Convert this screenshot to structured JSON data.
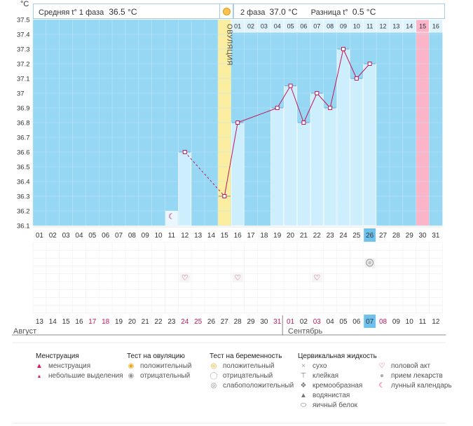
{
  "header": {
    "unit": "°C",
    "phase1_label": "Средняя t° 1 фаза",
    "phase1_value": "36.5 °C",
    "phase2_label": "2 фаза",
    "phase2_value": "37.0 °C",
    "diff_label": "Разница t°",
    "diff_value": "0.5 °C"
  },
  "chart_data": {
    "type": "line",
    "ylim": [
      36.1,
      37.5
    ],
    "yticks": [
      "37.5",
      "37.4",
      "37.3",
      "37.2",
      "37.1",
      "37",
      "36.9",
      "36.8",
      "36.7",
      "36.6",
      "36.5",
      "36.4",
      "36.3",
      "36.2",
      "36.1"
    ],
    "cycle_days": [
      "01",
      "02",
      "03",
      "04",
      "05",
      "06",
      "07",
      "08",
      "09",
      "10",
      "11",
      "12",
      "13",
      "14",
      "15",
      "16",
      "17",
      "18",
      "19",
      "20",
      "21",
      "22",
      "23",
      "24",
      "25",
      "26",
      "27",
      "28",
      "29",
      "30",
      "31"
    ],
    "dates": [
      "13",
      "14",
      "15",
      "16",
      "17",
      "18",
      "19",
      "20",
      "21",
      "22",
      "23",
      "24",
      "25",
      "26",
      "27",
      "28",
      "29",
      "30",
      "31",
      "01",
      "02",
      "03",
      "04",
      "05",
      "06",
      "07",
      "08",
      "09",
      "10",
      "11",
      "12"
    ],
    "date_colors": [
      "#333",
      "#333",
      "#333",
      "#333",
      "#c2185b",
      "#c2185b",
      "#333",
      "#333",
      "#333",
      "#333",
      "#333",
      "#c2185b",
      "#c2185b",
      "#333",
      "#333",
      "#333",
      "#333",
      "#333",
      "#c2185b",
      "#c2185b",
      "#333",
      "#c2185b",
      "#333",
      "#333",
      "#333",
      "#333",
      "#c2185b",
      "#333",
      "#333",
      "#333",
      "#333"
    ],
    "months": [
      "Август",
      "Сентябрь"
    ],
    "phase2_days": [
      "01",
      "02",
      "03",
      "04",
      "05",
      "06",
      "07",
      "08",
      "09",
      "10",
      "11",
      "12",
      "13",
      "14",
      "15",
      "16"
    ],
    "ovulation_label": "ОВУЛЯЦИЯ",
    "ovulation_day": 15,
    "today_day": 26,
    "pink_day_phase2": 15,
    "temps": [
      {
        "day": 12,
        "t": 36.6
      },
      {
        "day": 15,
        "t": 36.3
      },
      {
        "day": 16,
        "t": 36.8
      },
      {
        "day": 19,
        "t": 36.9
      },
      {
        "day": 20,
        "t": 37.05
      },
      {
        "day": 21,
        "t": 36.8
      },
      {
        "day": 22,
        "t": 37.0
      },
      {
        "day": 23,
        "t": 36.9
      },
      {
        "day": 24,
        "t": 37.3
      },
      {
        "day": 25,
        "t": 37.1
      },
      {
        "day": 26,
        "t": 37.2
      }
    ],
    "dashed_segments": [
      [
        12,
        15
      ]
    ],
    "moon_day": 11,
    "heart_days": [
      12,
      16,
      22
    ],
    "pregnancy_test_day": 26
  },
  "legend": {
    "menstruation": {
      "title": "Менструация",
      "items": [
        "менструация",
        "небольшие выделения"
      ]
    },
    "ovulation_test": {
      "title": "Тест на овуляцию",
      "items": [
        "положительный",
        "отрицательный"
      ]
    },
    "pregnancy_test": {
      "title": "Тест на беременность",
      "items": [
        "положительный",
        "отрицательный",
        "слабоположительный"
      ]
    },
    "cervical": {
      "title": "Цервикальная жидкость",
      "items": [
        "сухо",
        "клейкая",
        "кремообразная",
        "водянистая",
        "яичный белок"
      ]
    },
    "other": {
      "items": [
        "половой акт",
        "прием лекарств",
        "лунный календарь"
      ]
    }
  },
  "colors": {
    "sky": "#96d7f4",
    "grid": "#d9eef9",
    "bar": "#cdeefc",
    "barEdge": "#9fd2ee",
    "line": "#c2185b",
    "ovulation": "#fbeea0",
    "pink": "#fbb5c8",
    "today": "#6ec1ea"
  }
}
